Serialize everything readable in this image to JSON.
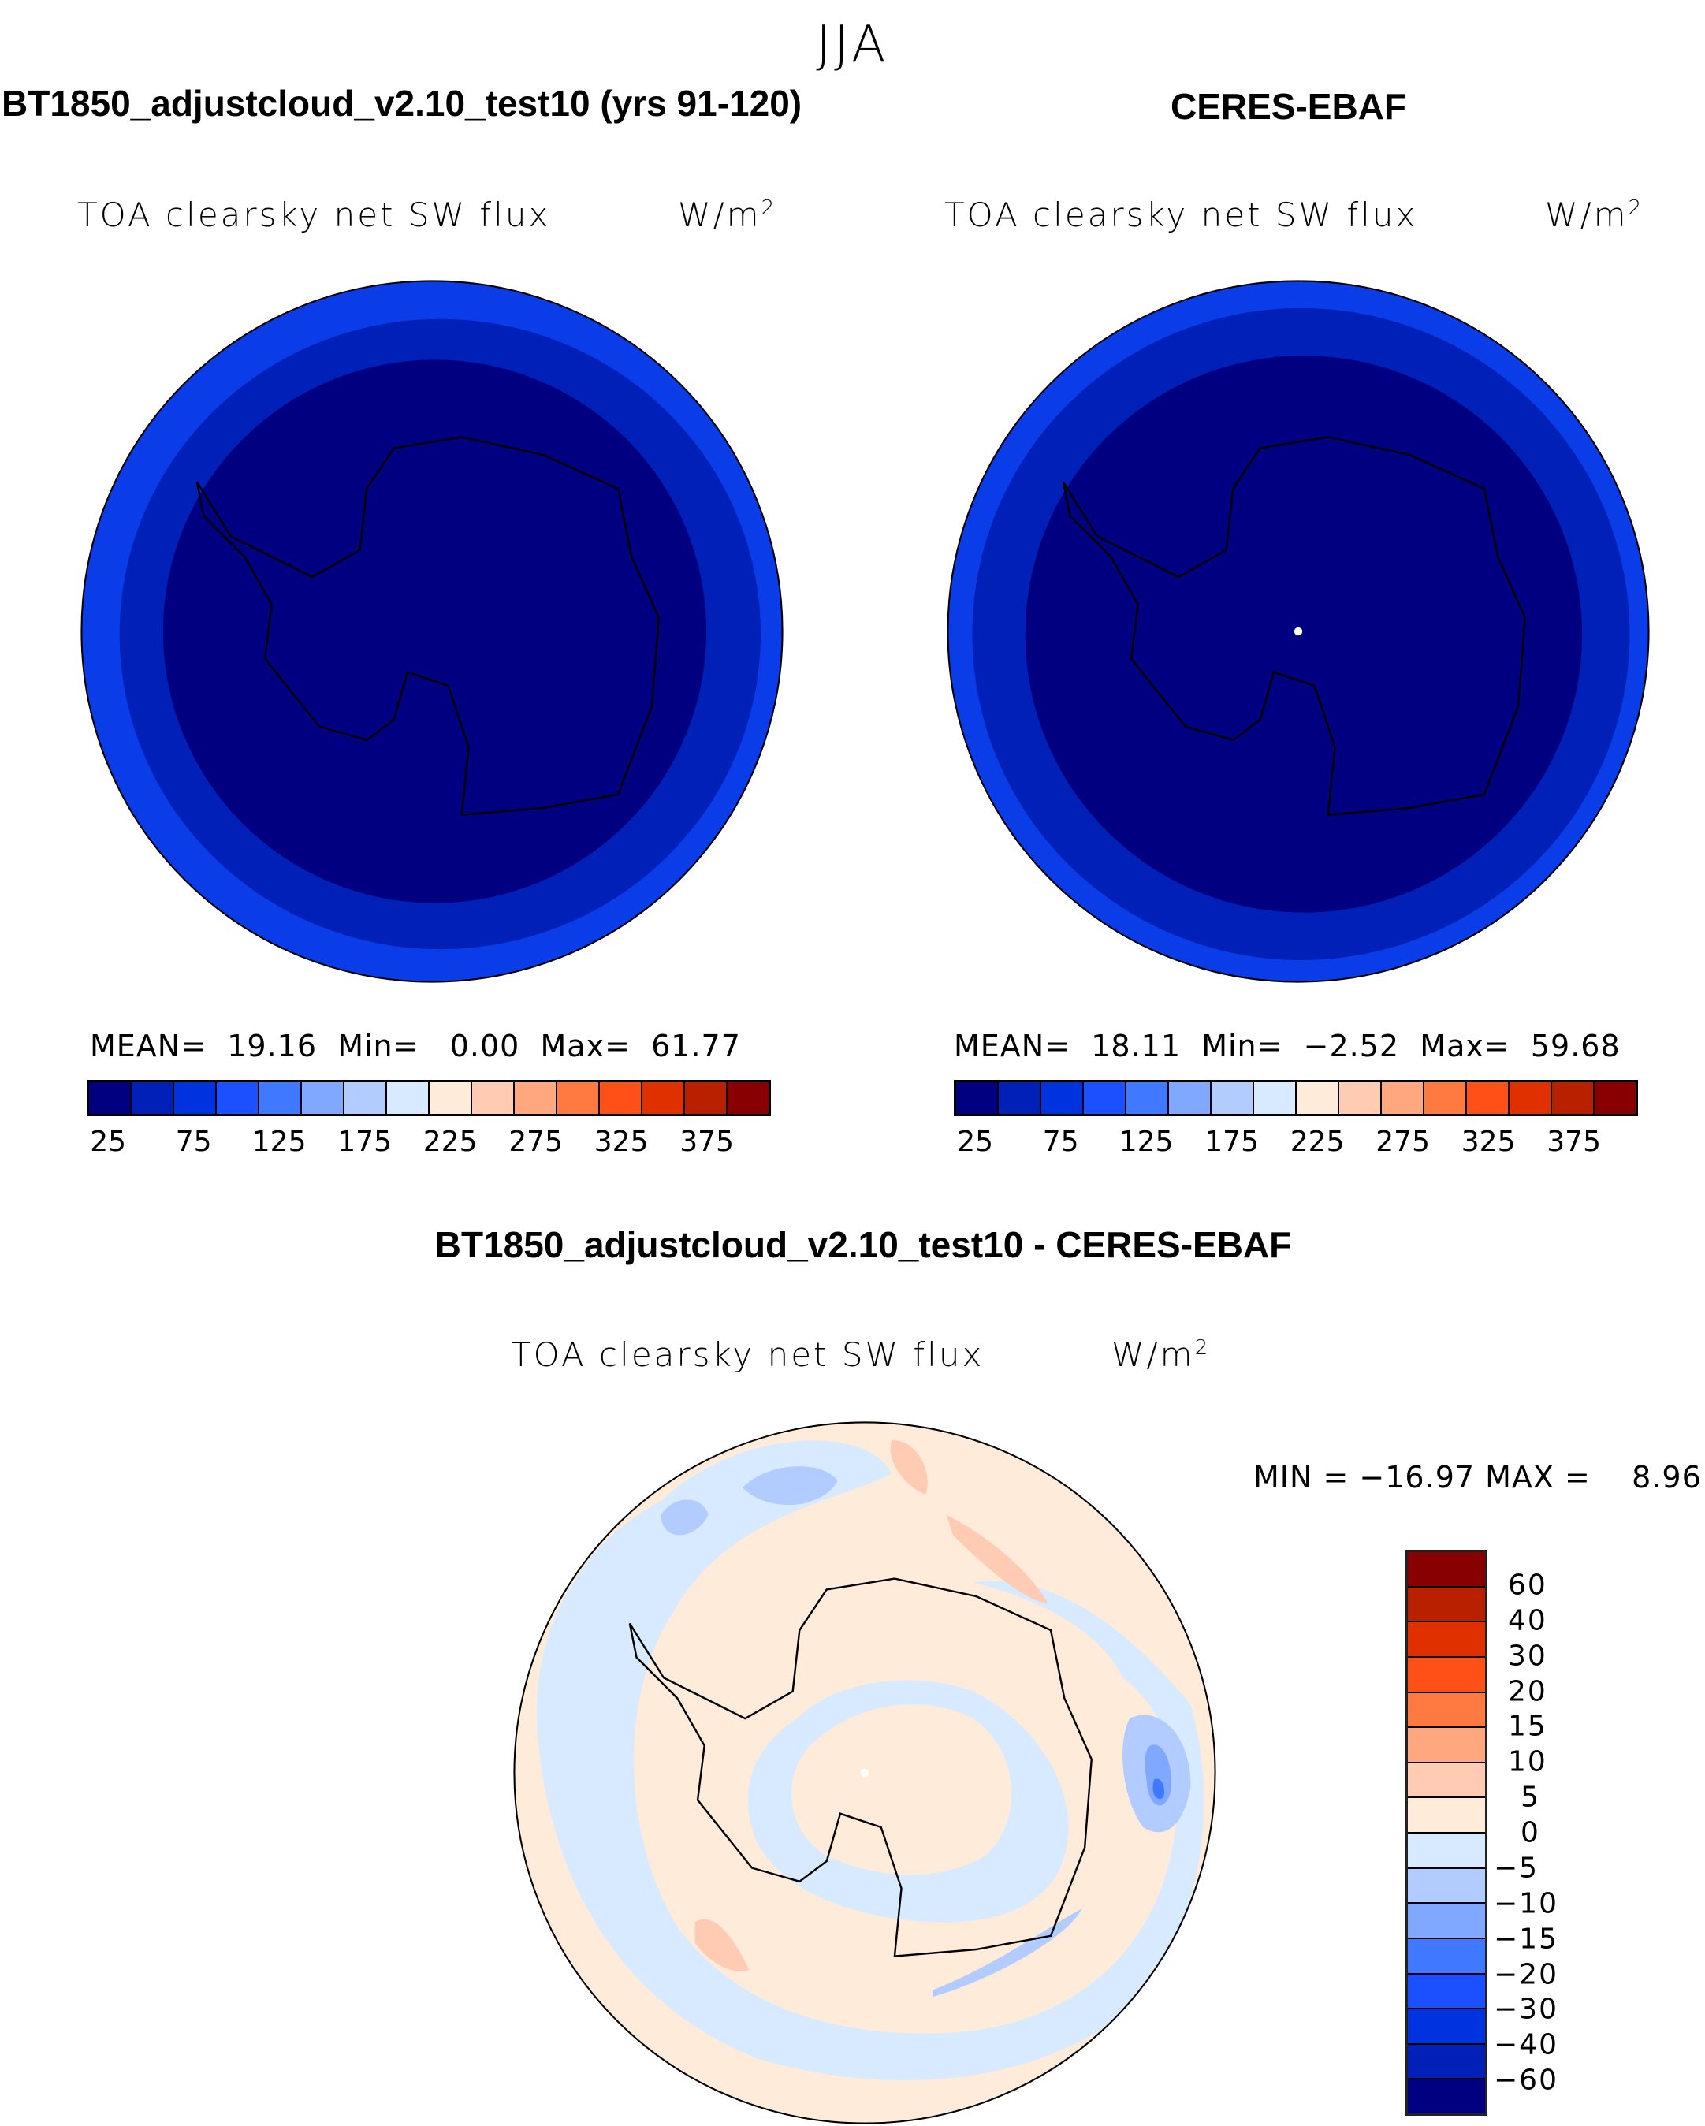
{
  "chart_data": {
    "type": "heatmap",
    "title": "JJA",
    "colors": [
      "#000080",
      "#0020b8",
      "#0033e0",
      "#1a50ff",
      "#4078ff",
      "#80a8ff",
      "#b3ccff",
      "#d8eaff",
      "#ffebd9",
      "#ffcbb3",
      "#ffa880",
      "#ff7a40",
      "#ff5018",
      "#e03000",
      "#b82000",
      "#880000"
    ],
    "panels": [
      {
        "title": "BT1850_adjustcloud_v2.10_test10 (yrs 91-120)",
        "variable": "TOA clearsky net SW flux",
        "units": "W/m",
        "units_sup": "2",
        "stats": {
          "mean_label": "MEAN=",
          "mean": "19.16",
          "min_label": "Min=",
          "min": "0.00",
          "max_label": "Max=",
          "max": "61.77"
        },
        "colorbar_ticks": [
          "25",
          "75",
          "125",
          "175",
          "225",
          "275",
          "325",
          "375"
        ],
        "projection": "south-polar stereographic"
      },
      {
        "title": "CERES-EBAF",
        "variable": "TOA clearsky net SW flux",
        "units": "W/m",
        "units_sup": "2",
        "stats": {
          "mean_label": "MEAN=",
          "mean": "18.11",
          "min_label": "Min=",
          "min": "−2.52",
          "max_label": "Max=",
          "max": "59.68"
        },
        "colorbar_ticks": [
          "25",
          "75",
          "125",
          "175",
          "225",
          "275",
          "325",
          "375"
        ],
        "projection": "south-polar stereographic"
      },
      {
        "title": "BT1850_adjustcloud_v2.10_test10 - CERES-EBAF",
        "variable": "TOA clearsky net SW flux",
        "units": "W/m",
        "units_sup": "2",
        "stats_text": "MIN = −16.97 MAX =    8.96",
        "colorbar_ticks": [
          "60",
          "40",
          "30",
          "20",
          "15",
          "10",
          "5",
          "0",
          "−5",
          "−10",
          "−15",
          "−20",
          "−30",
          "−40",
          "−60"
        ],
        "projection": "south-polar stereographic"
      }
    ]
  }
}
